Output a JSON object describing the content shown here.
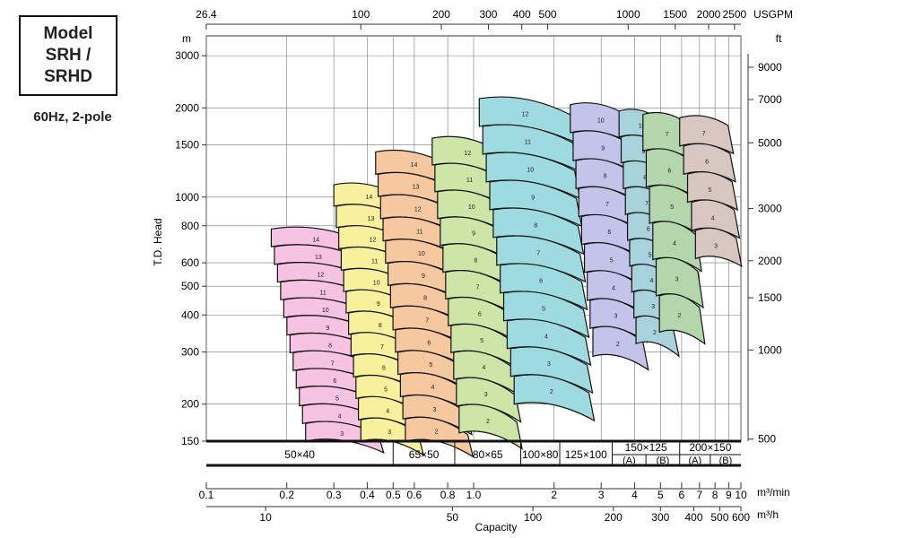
{
  "model_box": {
    "line1": "Model",
    "line2": "SRH /",
    "line3": "SRHD"
  },
  "frequency_label": "60Hz, 2-pole",
  "chart_data": {
    "type": "area",
    "xlabel": "Capacity",
    "ylabel": "T.D. Head",
    "left_axis_unit": "m",
    "right_axis_unit": "ft",
    "bottom_unit_1": "m³/min",
    "bottom_unit_2": "m³/h",
    "top_unit": "USGPM",
    "x_scale": "log",
    "y_scale": "log",
    "xlim_m3min": [
      0.1,
      10
    ],
    "ylim_m": [
      150,
      3500
    ],
    "grid": true,
    "left_ticks": [
      3000,
      2000,
      1500,
      1000,
      800,
      600,
      500,
      400,
      300,
      200,
      150
    ],
    "right_ticks": [
      9000,
      7000,
      5000,
      3000,
      2000,
      1500,
      1000,
      500
    ],
    "top_ticks": [
      26.4,
      100,
      200,
      300,
      400,
      500,
      1000,
      1500,
      2000,
      2500
    ],
    "bottom_m3min_ticks": [
      "0.1",
      "0.2",
      "0.3",
      "0.4",
      "0.5",
      "0.6",
      "0.8",
      "1.0",
      "2",
      "3",
      "4",
      "5",
      "6",
      "7",
      "8",
      "9",
      "10"
    ],
    "bottom_m3h_ticks": [
      10,
      50,
      100,
      200,
      300,
      400,
      500,
      600
    ],
    "models": [
      {
        "name": "50×40",
        "color": "#f7c3e2",
        "x": [
          0.175,
          0.44
        ],
        "head": [
          150,
          780
        ],
        "stages": [
          "3",
          "4",
          "5",
          "6",
          "7",
          "8",
          "9",
          "10",
          "11",
          "12",
          "13",
          "14"
        ]
      },
      {
        "name": "65×50",
        "color": "#f7f19e",
        "x": [
          0.3,
          0.62
        ],
        "head": [
          150,
          1100
        ],
        "stages": [
          "3",
          "4",
          "5",
          "6",
          "7",
          "8",
          "9",
          "10",
          "11",
          "12",
          "13",
          "14"
        ]
      },
      {
        "name": "80×65",
        "color": "#f6c8a0",
        "x": [
          0.43,
          0.95
        ],
        "head": [
          150,
          1420
        ],
        "stages": [
          "2",
          "3",
          "4",
          "5",
          "6",
          "7",
          "8",
          "9",
          "10",
          "11",
          "12",
          "13",
          "14"
        ]
      },
      {
        "name": "100×80",
        "color": "#cde6a8",
        "x": [
          0.7,
          1.45
        ],
        "head": [
          160,
          1580
        ],
        "stages": [
          "2",
          "3",
          "4",
          "5",
          "6",
          "7",
          "8",
          "9",
          "10",
          "11",
          "12"
        ]
      },
      {
        "name": "125×100",
        "color": "#9ddbe0",
        "x": [
          1.05,
          2.7
        ],
        "head": [
          200,
          2150
        ],
        "stages": [
          "2",
          "3",
          "4",
          "5",
          "6",
          "7",
          "8",
          "9",
          "10",
          "11",
          "12"
        ]
      },
      {
        "name": "150×125",
        "subs": [
          "(A)",
          "(B)"
        ],
        "color": "#c4c4ea",
        "x": [
          2.3,
          4.3
        ],
        "head": [
          290,
          2050
        ],
        "stages": [
          "2",
          "3",
          "4",
          "5",
          "6",
          "7",
          "8",
          "9",
          "10"
        ]
      },
      {
        "name": "150×125 (B)",
        "color": "#a8d2dc",
        "x": [
          3.5,
          5.6
        ],
        "head": [
          320,
          1950
        ],
        "stages": [
          "2",
          "3",
          "4",
          "5",
          "6",
          "7",
          "8",
          "9",
          "10"
        ]
      },
      {
        "name": "200×150",
        "subs": [
          "(A)",
          "(B)"
        ],
        "color": "#b4d6ad",
        "x": [
          4.3,
          7.0
        ],
        "head": [
          350,
          1900
        ],
        "stages": [
          "2",
          "3",
          "4",
          "5",
          "6",
          "7"
        ]
      },
      {
        "name": "200×150 (B)",
        "color": "#d8c6c0",
        "x": [
          5.9,
          9.6
        ],
        "head": [
          620,
          1850
        ],
        "stages": [
          "3",
          "4",
          "5",
          "6",
          "7"
        ]
      }
    ]
  }
}
